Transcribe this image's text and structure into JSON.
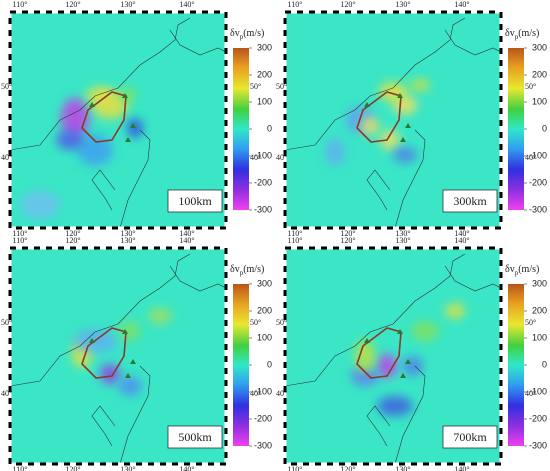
{
  "panels": [
    {
      "depth": "100km",
      "colorbar": {
        "symbol": "δv",
        "subscript": "p",
        "unit": "(m/s)",
        "lim": [
          -300,
          300
        ],
        "ticks": [
          300,
          200,
          100,
          0,
          -100,
          -200,
          -300
        ]
      },
      "lon_labels": [
        "110°",
        "120°",
        "130°",
        "140°"
      ],
      "lat_labels": [
        "50°",
        "40°"
      ]
    },
    {
      "depth": "300km",
      "colorbar": {
        "symbol": "δv",
        "subscript": "p",
        "unit": "(m/s)",
        "lim": [
          -300,
          300
        ],
        "ticks": [
          300,
          200,
          100,
          0,
          -100,
          -200,
          -300
        ]
      },
      "lon_labels": [
        "110°",
        "120°",
        "130°",
        "140°"
      ],
      "lat_labels": [
        "50°",
        "40°"
      ]
    },
    {
      "depth": "500km",
      "colorbar": {
        "symbol": "δv",
        "subscript": "p",
        "unit": "(m/s)",
        "lim": [
          -300,
          300
        ],
        "ticks": [
          300,
          200,
          100,
          0,
          -100,
          -200,
          -300
        ]
      },
      "lon_labels": [
        "110°",
        "120°",
        "130°",
        "140°"
      ],
      "lat_labels": [
        "50°",
        "40°"
      ]
    },
    {
      "depth": "700km",
      "colorbar": {
        "symbol": "δv",
        "subscript": "p",
        "unit": "(m/s)",
        "lim": [
          -300,
          300
        ],
        "ticks": [
          300,
          200,
          100,
          0,
          -100,
          -200,
          -300
        ]
      },
      "lon_labels": [
        "110°",
        "120°",
        "130°",
        "140°"
      ],
      "lat_labels": [
        "50°",
        "40°"
      ]
    }
  ]
}
